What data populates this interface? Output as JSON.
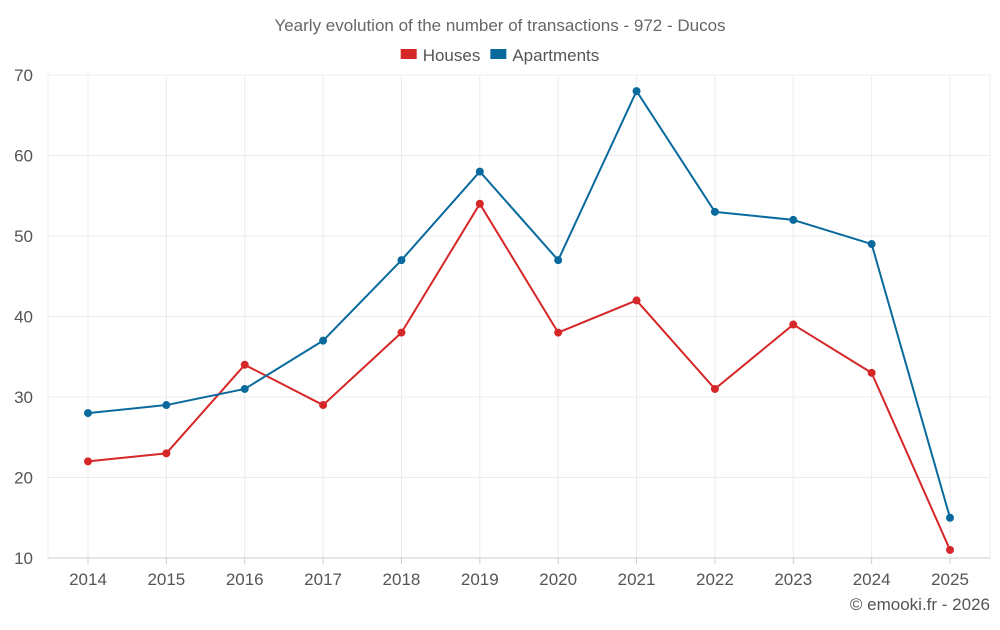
{
  "chart_data": {
    "type": "line",
    "title": "Yearly evolution of the number of transactions - 972 - Ducos",
    "xlabel": "",
    "ylabel": "",
    "categories": [
      "2014",
      "2015",
      "2016",
      "2017",
      "2018",
      "2019",
      "2020",
      "2021",
      "2022",
      "2023",
      "2024",
      "2025"
    ],
    "ylim": [
      10,
      70
    ],
    "yticks": [
      10,
      20,
      30,
      40,
      50,
      60,
      70
    ],
    "grid": true,
    "legend_position": "top-center",
    "series": [
      {
        "name": "Houses",
        "color": "#d62728",
        "values": [
          22,
          23,
          34,
          29,
          38,
          54,
          38,
          42,
          31,
          39,
          33,
          11
        ]
      },
      {
        "name": "Apartments",
        "color": "#0a6a9e",
        "values": [
          28,
          29,
          31,
          37,
          47,
          58,
          47,
          68,
          53,
          52,
          49,
          15
        ]
      }
    ]
  },
  "credit": "© emooki.fr - 2026"
}
